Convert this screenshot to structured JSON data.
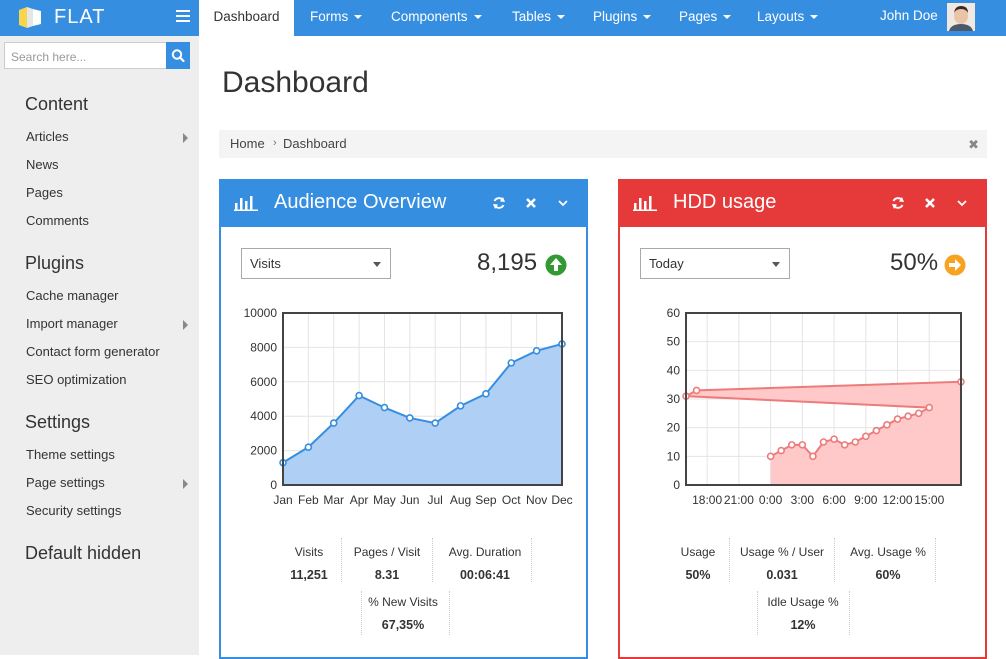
{
  "app": {
    "brand": "FLAT"
  },
  "nav": {
    "items": [
      {
        "label": "Dashboard",
        "dropdown": false,
        "active": true
      },
      {
        "label": "Forms",
        "dropdown": true
      },
      {
        "label": "Components",
        "dropdown": true
      },
      {
        "label": "Tables",
        "dropdown": true
      },
      {
        "label": "Plugins",
        "dropdown": true
      },
      {
        "label": "Pages",
        "dropdown": true
      },
      {
        "label": "Layouts",
        "dropdown": true
      }
    ],
    "user": "John Doe",
    "accent": "#368ee0"
  },
  "sidebar": {
    "search_placeholder": "Search here...",
    "sections": [
      {
        "title": "Content",
        "items": [
          {
            "label": "Articles",
            "submenu": true
          },
          {
            "label": "News",
            "submenu": false
          },
          {
            "label": "Pages",
            "submenu": false
          },
          {
            "label": "Comments",
            "submenu": false
          }
        ]
      },
      {
        "title": "Plugins",
        "items": [
          {
            "label": "Cache manager",
            "submenu": false
          },
          {
            "label": "Import manager",
            "submenu": true
          },
          {
            "label": "Contact form generator",
            "submenu": false
          },
          {
            "label": "SEO optimization",
            "submenu": false
          }
        ]
      },
      {
        "title": "Settings",
        "items": [
          {
            "label": "Theme settings",
            "submenu": false
          },
          {
            "label": "Page settings",
            "submenu": true
          },
          {
            "label": "Security settings",
            "submenu": false
          }
        ]
      },
      {
        "title": "Default hidden",
        "items": []
      }
    ]
  },
  "page": {
    "title": "Dashboard",
    "breadcrumb": [
      "Home",
      "Dashboard"
    ],
    "breadcrumb_sep": "›"
  },
  "widgets": {
    "audience": {
      "title": "Audience Overview",
      "color": "#368ee0",
      "select": "Visits",
      "big_value": "8,195",
      "trend": "up",
      "trend_color": "#339933",
      "stats": [
        {
          "label": "Visits",
          "value": "11,251"
        },
        {
          "label": "Pages / Visit",
          "value": "8.31"
        },
        {
          "label": "Avg. Duration",
          "value": "00:06:41"
        },
        {
          "label": "% New Visits",
          "value": "67,35%"
        }
      ]
    },
    "hdd": {
      "title": "HDD usage",
      "color": "#e63a3a",
      "select": "Today",
      "big_value": "50%",
      "trend": "right",
      "trend_color": "#f8a31f",
      "stats": [
        {
          "label": "Usage",
          "value": "50%"
        },
        {
          "label": "Usage % / User",
          "value": "0.031"
        },
        {
          "label": "Avg. Usage %",
          "value": "60%"
        },
        {
          "label": "Idle Usage %",
          "value": "12%"
        }
      ]
    }
  },
  "chart_data": [
    {
      "type": "area",
      "x": [
        "Jan",
        "Feb",
        "Mar",
        "Apr",
        "May",
        "Jun",
        "Jul",
        "Aug",
        "Sep",
        "Oct",
        "Nov",
        "Dec"
      ],
      "series": [
        {
          "values": [
            1300,
            2200,
            3600,
            5200,
            4500,
            3900,
            3600,
            4600,
            5300,
            7100,
            7800,
            8200
          ]
        }
      ],
      "ylim": [
        0,
        10000
      ],
      "yticks": [
        "0",
        "2000",
        "4000",
        "6000",
        "8000",
        "10000"
      ],
      "grid": true,
      "line_color": "#368ee0",
      "fill_color": "#b0cff4"
    },
    {
      "type": "area",
      "xticks": [
        "18:00",
        "21:00",
        "0:00",
        "3:00",
        "6:00",
        "9:00",
        "12:00",
        "15:00"
      ],
      "series": [
        {
          "values": [
            [
              "0:00",
              10
            ],
            [
              "1:00",
              12
            ],
            [
              "2:00",
              14
            ],
            [
              "3:00",
              14
            ],
            [
              "4:00",
              10
            ],
            [
              "5:00",
              15
            ],
            [
              "6:00",
              16
            ],
            [
              "7:00",
              14
            ],
            [
              "8:00",
              15
            ],
            [
              "9:00",
              17
            ],
            [
              "10:00",
              19
            ],
            [
              "11:00",
              21
            ],
            [
              "12:00",
              23
            ],
            [
              "13:00",
              24
            ],
            [
              "14:00",
              25
            ],
            [
              "15:00",
              27
            ],
            [
              "16:00",
              31
            ],
            [
              "17:00",
              33
            ],
            [
              "18:00",
              36
            ]
          ]
        }
      ],
      "ylim": [
        0,
        60
      ],
      "yticks": [
        "0",
        "10",
        "20",
        "30",
        "40",
        "50",
        "60"
      ],
      "grid": true,
      "line_color": "#ee7b7b",
      "fill_color": "#ffc9c9"
    }
  ]
}
